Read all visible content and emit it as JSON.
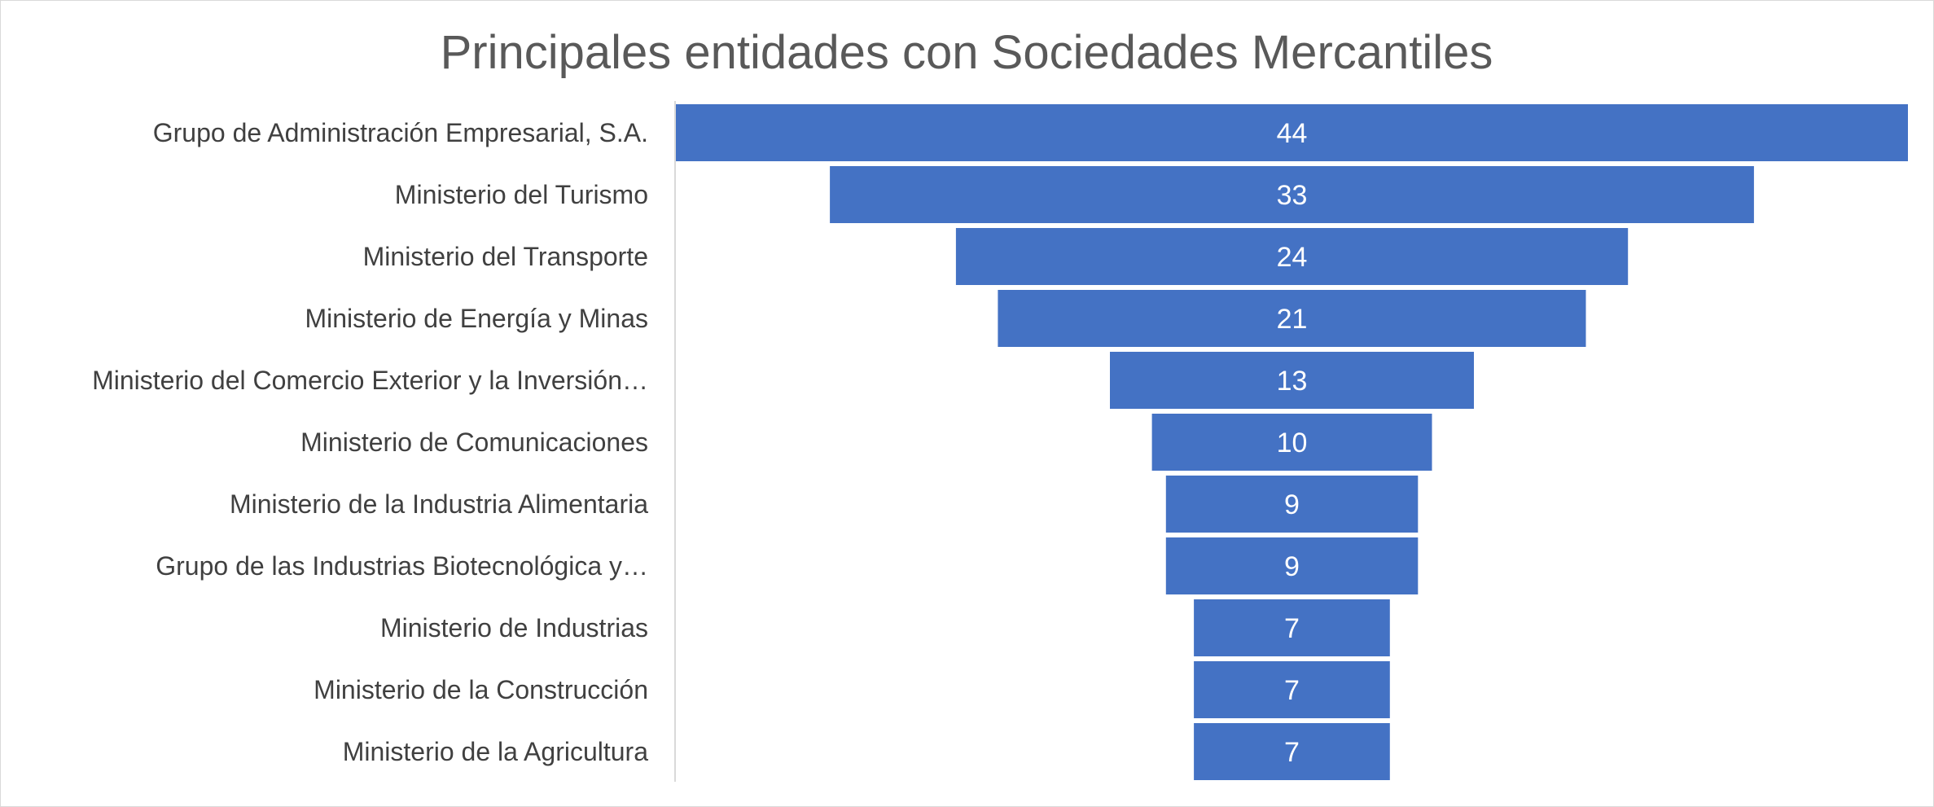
{
  "chart_data": {
    "type": "funnel",
    "title": "Principales entidades con Sociedades Mercantiles",
    "categories": [
      "Grupo de Administración Empresarial, S.A.",
      "Ministerio del Turismo",
      "Ministerio del Transporte",
      "Ministerio de Energía y Minas",
      "Ministerio del Comercio Exterior y la Inversión…",
      "Ministerio de Comunicaciones",
      "Ministerio de la Industria Alimentaria",
      "Grupo de las Industrias Biotecnológica y…",
      "Ministerio de Industrias",
      "Ministerio de la Construcción",
      "Ministerio de la Agricultura"
    ],
    "values": [
      44,
      33,
      24,
      21,
      13,
      10,
      9,
      9,
      7,
      7,
      7
    ],
    "data_labels": true,
    "legend": "none",
    "grid": false,
    "colors": {
      "bar": "#4472c4",
      "title": "#595959",
      "label": "#404040",
      "data_label": "#ffffff",
      "axis": "#d9d9d9"
    }
  }
}
